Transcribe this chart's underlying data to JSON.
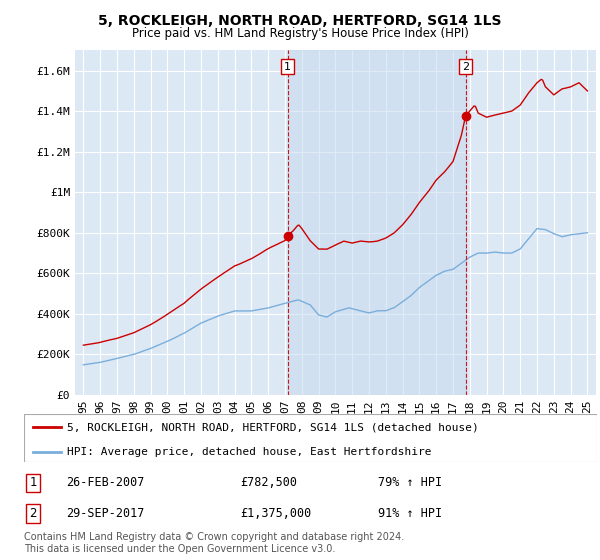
{
  "title": "5, ROCKLEIGH, NORTH ROAD, HERTFORD, SG14 1LS",
  "subtitle": "Price paid vs. HM Land Registry's House Price Index (HPI)",
  "legend_line1": "5, ROCKLEIGH, NORTH ROAD, HERTFORD, SG14 1LS (detached house)",
  "legend_line2": "HPI: Average price, detached house, East Hertfordshire",
  "sale1_date": "26-FEB-2007",
  "sale1_price": 782500,
  "sale1_label": "79% ↑ HPI",
  "sale1_year": 2007.15,
  "sale2_date": "29-SEP-2017",
  "sale2_price": 1375000,
  "sale2_label": "91% ↑ HPI",
  "sale2_year": 2017.75,
  "footer": "Contains HM Land Registry data © Crown copyright and database right 2024.\nThis data is licensed under the Open Government Licence v3.0.",
  "ylim": [
    0,
    1700000
  ],
  "yticks": [
    0,
    200000,
    400000,
    600000,
    800000,
    1000000,
    1200000,
    1400000,
    1600000
  ],
  "ytick_labels": [
    "£0",
    "£200K",
    "£400K",
    "£600K",
    "£800K",
    "£1M",
    "£1.2M",
    "£1.4M",
    "£1.6M"
  ],
  "background_color": "#dce9f5",
  "red_color": "#cc0000",
  "blue_color": "#7aaedb",
  "fill_color": "#c5d9ee",
  "grid_color": "#ffffff"
}
